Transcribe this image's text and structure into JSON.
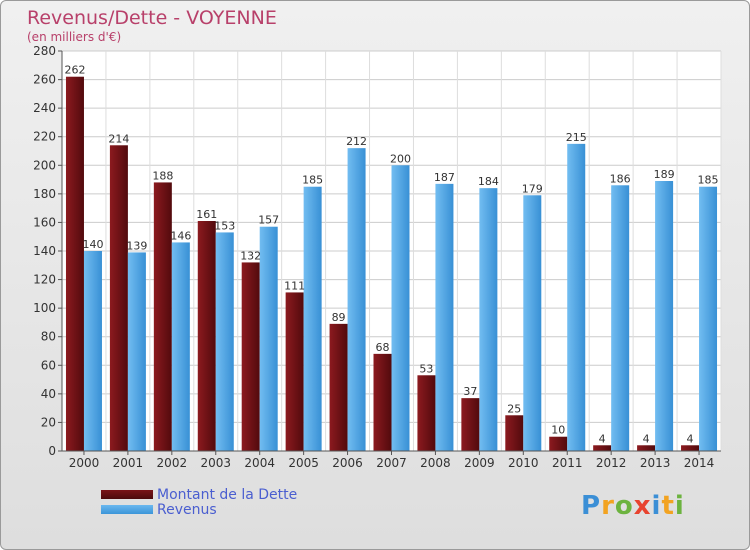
{
  "title": "Revenus/Dette - VOYENNE",
  "subtitle": "(en milliers d'€)",
  "legend": {
    "debt_label": "Montant de la Dette",
    "revenue_label": "Revenus"
  },
  "logo": {
    "text": "Proxiti",
    "letters": [
      "P",
      "r",
      "o",
      "x",
      "i",
      "t",
      "i"
    ]
  },
  "colors": {
    "debt": "#6b1216",
    "revenue": "#4aa6e6",
    "title": "#b8406a",
    "legend_text": "#4a5ed0"
  },
  "chart_data": {
    "type": "bar",
    "title": "Revenus/Dette - VOYENNE",
    "subtitle": "(en milliers d'€)",
    "categories": [
      "2000",
      "2001",
      "2002",
      "2003",
      "2004",
      "2005",
      "2006",
      "2007",
      "2008",
      "2009",
      "2010",
      "2011",
      "2012",
      "2013",
      "2014"
    ],
    "series": [
      {
        "name": "Montant de la Dette",
        "values": [
          262,
          214,
          188,
          161,
          132,
          111,
          89,
          68,
          53,
          37,
          25,
          10,
          4,
          4,
          4
        ]
      },
      {
        "name": "Revenus",
        "values": [
          140,
          139,
          146,
          153,
          157,
          185,
          212,
          200,
          187,
          184,
          179,
          215,
          186,
          189,
          185
        ]
      }
    ],
    "ylim": [
      0,
      280
    ],
    "yticks": [
      0,
      20,
      40,
      60,
      80,
      100,
      120,
      140,
      160,
      180,
      200,
      220,
      240,
      260,
      280
    ],
    "grid": true,
    "legend_position": "bottom-left"
  }
}
